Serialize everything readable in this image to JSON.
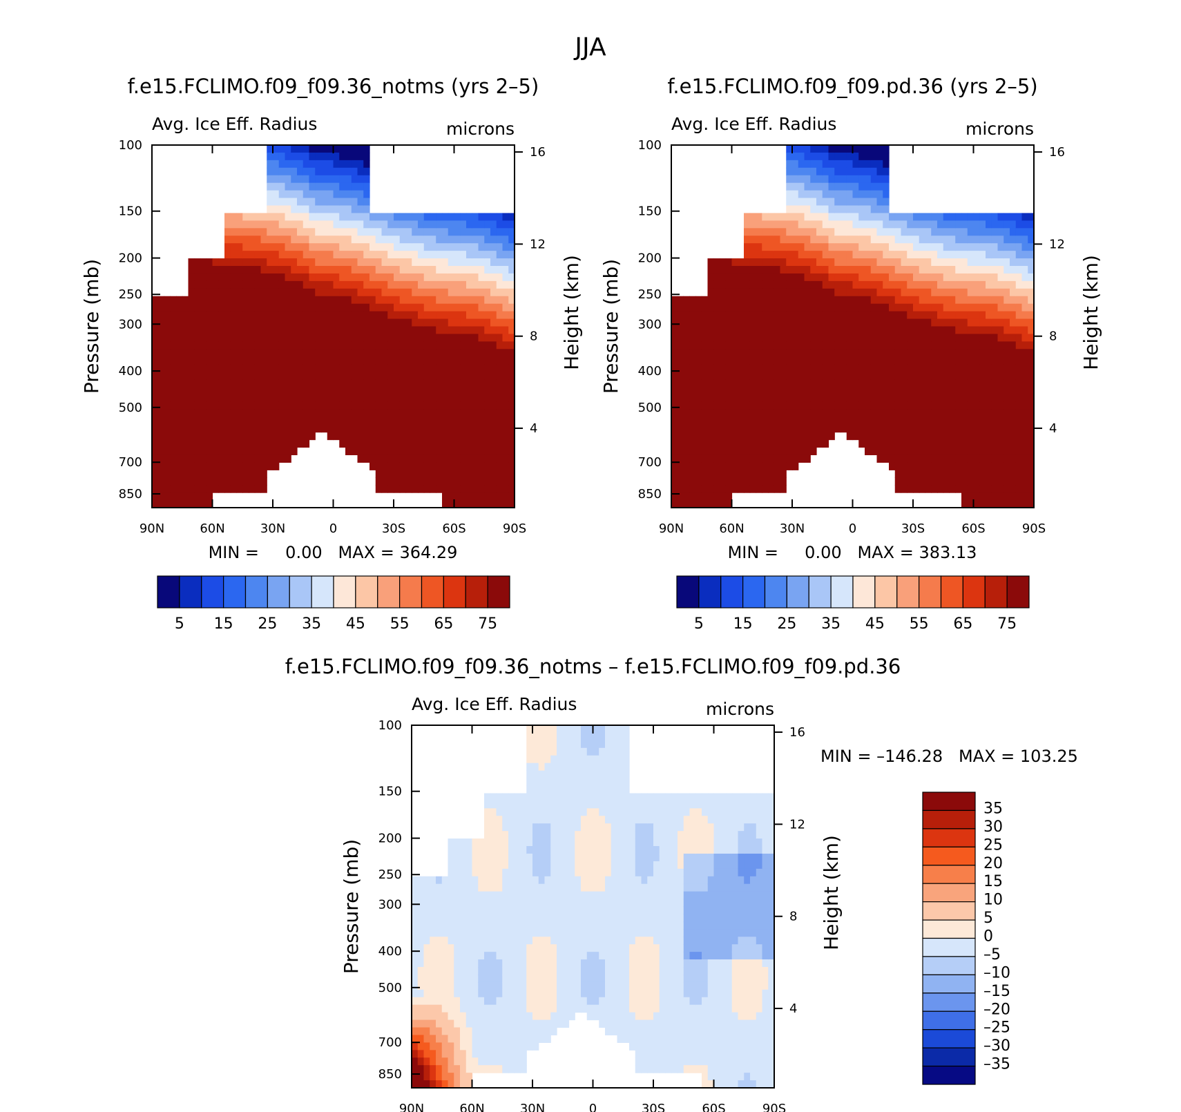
{
  "page_title": "JJA",
  "chart_data": [
    {
      "type": "heatmap",
      "title": "f.e15.FCLIMO.f09_f09.36_notms (yrs 2–5)",
      "left_label": "Avg. Ice Eff. Radius",
      "right_label": "microns",
      "ylabel": "Pressure (mb)",
      "y2label": "Height (km)",
      "x_ticks": [
        "90N",
        "60N",
        "30N",
        "0",
        "30S",
        "60S",
        "90S"
      ],
      "y_ticks": [
        100,
        150,
        200,
        250,
        300,
        400,
        500,
        700,
        850
      ],
      "y2_ticks": [
        16,
        12,
        8,
        4
      ],
      "ylim": [
        100,
        925
      ],
      "y_scale": "log",
      "stats": "MIN =     0.00   MAX = 364.29",
      "colorbar_labels": [
        "5",
        "15",
        "25",
        "35",
        "45",
        "55",
        "65",
        "75"
      ],
      "colorbar_colors": [
        "#08087a",
        "#0a2dbf",
        "#1c4ce6",
        "#2b67f0",
        "#4d86f0",
        "#79a4f2",
        "#a9c6f7",
        "#d6e6fb",
        "#fde7d8",
        "#fcc6a6",
        "#f9a07a",
        "#f57b4c",
        "#ee5624",
        "#dc3510",
        "#b71f0a",
        "#8b0a0a"
      ]
    },
    {
      "type": "heatmap",
      "title": "f.e15.FCLIMO.f09_f09.pd.36 (yrs 2–5)",
      "left_label": "Avg. Ice Eff. Radius",
      "right_label": "microns",
      "ylabel": "Pressure (mb)",
      "y2label": "Height (km)",
      "x_ticks": [
        "90N",
        "60N",
        "30N",
        "0",
        "30S",
        "60S",
        "90S"
      ],
      "y_ticks": [
        100,
        150,
        200,
        250,
        300,
        400,
        500,
        700,
        850
      ],
      "y2_ticks": [
        16,
        12,
        8,
        4
      ],
      "ylim": [
        100,
        925
      ],
      "y_scale": "log",
      "stats": "MIN =     0.00   MAX = 383.13",
      "colorbar_labels": [
        "5",
        "15",
        "25",
        "35",
        "45",
        "55",
        "65",
        "75"
      ],
      "colorbar_colors": [
        "#08087a",
        "#0a2dbf",
        "#1c4ce6",
        "#2b67f0",
        "#4d86f0",
        "#79a4f2",
        "#a9c6f7",
        "#d6e6fb",
        "#fde7d8",
        "#fcc6a6",
        "#f9a07a",
        "#f57b4c",
        "#ee5624",
        "#dc3510",
        "#b71f0a",
        "#8b0a0a"
      ]
    },
    {
      "type": "heatmap",
      "title": "f.e15.FCLIMO.f09_f09.36_notms – f.e15.FCLIMO.f09_f09.pd.36",
      "left_label": "Avg. Ice Eff. Radius",
      "right_label": "microns",
      "ylabel": "Pressure (mb)",
      "y2label": "Height (km)",
      "x_ticks": [
        "90N",
        "60N",
        "30N",
        "0",
        "30S",
        "60S",
        "90S"
      ],
      "y_ticks": [
        100,
        150,
        200,
        250,
        300,
        400,
        500,
        700,
        850
      ],
      "y2_ticks": [
        16,
        12,
        8,
        4
      ],
      "ylim": [
        100,
        925
      ],
      "y_scale": "log",
      "stats": "MIN = –146.28   MAX = 103.25",
      "colorbar_labels": [
        "35",
        "30",
        "25",
        "20",
        "15",
        "10",
        "5",
        "0",
        "–5",
        "–10",
        "–15",
        "–20",
        "–25",
        "–30",
        "–35"
      ],
      "colorbar_colors": [
        "#8b0a0a",
        "#b71f0a",
        "#dc3510",
        "#f55a1e",
        "#f77f4a",
        "#f9a47c",
        "#fcc8aa",
        "#fde9d8",
        "#d6e6fb",
        "#b5cef7",
        "#90b3f2",
        "#6b95ee",
        "#3f6fe8",
        "#1b4ad8",
        "#0b2aa8",
        "#060a84"
      ]
    }
  ]
}
